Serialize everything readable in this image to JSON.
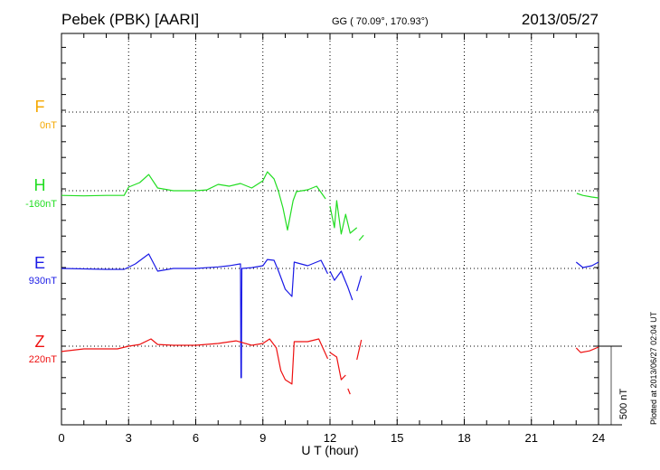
{
  "header": {
    "station": "Pebek (PBK)  [AARI]",
    "coords": "GG ( 70.09°, 170.93°)",
    "date": "2013/05/27"
  },
  "footer": {
    "plotted": "Plotted at 2013/06/27 02:04 UT",
    "scale_label": "500 nT"
  },
  "chart_data": {
    "type": "line",
    "title": "Pebek (PBK)  [AARI]",
    "xlabel": "U T (hour)",
    "xlim": [
      0,
      24
    ],
    "xticks": [
      "0",
      "3",
      "6",
      "9",
      "12",
      "15",
      "18",
      "21",
      "24"
    ],
    "nT_per_tick": 100,
    "scale_nT": 500,
    "grid": true,
    "components": [
      {
        "name": "F",
        "offset": "0nT",
        "color": "#f5a800",
        "segments": []
      },
      {
        "name": "H",
        "offset": "-160nT",
        "color": "#22dd22",
        "segments": [
          [
            [
              0,
              -30
            ],
            [
              1,
              -33
            ],
            [
              2,
              -30
            ],
            [
              2.8,
              -30
            ],
            [
              3.0,
              23
            ],
            [
              3.5,
              52
            ],
            [
              3.9,
              103
            ],
            [
              4.3,
              17
            ],
            [
              5,
              0
            ],
            [
              6,
              0
            ],
            [
              6.5,
              5
            ],
            [
              7,
              40
            ],
            [
              7.5,
              29
            ],
            [
              8,
              46
            ],
            [
              8.5,
              17
            ],
            [
              9,
              63
            ],
            [
              9.2,
              120
            ],
            [
              9.5,
              75
            ],
            [
              9.7,
              -6
            ],
            [
              9.9,
              -110
            ],
            [
              10.1,
              -250
            ],
            [
              10.35,
              -63
            ],
            [
              10.5,
              -6
            ],
            [
              11,
              6
            ],
            [
              11.4,
              29
            ],
            [
              11.8,
              -52
            ]
          ],
          [
            [
              12.0,
              -98
            ],
            [
              12.2,
              -235
            ],
            [
              12.3,
              -63
            ],
            [
              12.5,
              -275
            ],
            [
              12.7,
              -150
            ],
            [
              12.9,
              -270
            ],
            [
              13.2,
              -235
            ]
          ],
          [
            [
              13.3,
              -316
            ],
            [
              13.5,
              -283
            ]
          ],
          [
            [
              23.03,
              -17
            ],
            [
              23.3,
              -30
            ],
            [
              23.7,
              -40
            ],
            [
              24,
              -46
            ]
          ]
        ]
      },
      {
        "name": "E",
        "offset": "930nT",
        "color": "#1a1ae6",
        "segments": [
          [
            [
              0,
              0
            ],
            [
              1,
              -3
            ],
            [
              2,
              -6
            ],
            [
              2.8,
              -6
            ],
            [
              3.3,
              29
            ],
            [
              3.9,
              92
            ],
            [
              4.3,
              -17
            ],
            [
              5,
              0
            ],
            [
              6,
              0
            ],
            [
              7,
              10
            ],
            [
              7.5,
              17
            ],
            [
              7.98,
              29
            ],
            [
              8.0,
              29
            ],
            [
              8.02,
              -695
            ],
            [
              8.04,
              -695
            ],
            [
              8.06,
              0
            ],
            [
              8.5,
              5
            ],
            [
              9,
              17
            ],
            [
              9.2,
              57
            ],
            [
              9.5,
              52
            ],
            [
              9.7,
              -17
            ],
            [
              10.0,
              -132
            ],
            [
              10.3,
              -178
            ],
            [
              10.4,
              40
            ],
            [
              11,
              17
            ],
            [
              11.6,
              52
            ],
            [
              11.9,
              -34
            ]
          ],
          [
            [
              12.0,
              -17
            ],
            [
              12.2,
              -75
            ],
            [
              12.5,
              -17
            ],
            [
              12.8,
              -120
            ],
            [
              13.0,
              -201
            ]
          ],
          [
            [
              13.2,
              -144
            ],
            [
              13.4,
              -46
            ]
          ],
          [
            [
              23.0,
              40
            ],
            [
              23.3,
              6
            ],
            [
              23.7,
              17
            ],
            [
              24,
              40
            ]
          ]
        ]
      },
      {
        "name": "Z",
        "offset": "220nT",
        "color": "#ee1111",
        "segments": [
          [
            [
              0,
              -34
            ],
            [
              1,
              -17
            ],
            [
              2.5,
              -17
            ],
            [
              3.0,
              0
            ],
            [
              3.5,
              11
            ],
            [
              4,
              46
            ],
            [
              4.3,
              11
            ],
            [
              5,
              6
            ],
            [
              6,
              6
            ],
            [
              7,
              17
            ],
            [
              7.8,
              34
            ],
            [
              8.5,
              6
            ],
            [
              9,
              17
            ],
            [
              9.3,
              46
            ],
            [
              9.6,
              -11
            ],
            [
              9.8,
              -155
            ],
            [
              10.0,
              -213
            ],
            [
              10.3,
              -241
            ],
            [
              10.4,
              29
            ],
            [
              11,
              29
            ],
            [
              11.5,
              46
            ],
            [
              11.9,
              -80
            ]
          ],
          [
            [
              12.0,
              -40
            ],
            [
              12.3,
              -69
            ],
            [
              12.5,
              -213
            ],
            [
              12.7,
              -184
            ]
          ],
          [
            [
              12.8,
              -270
            ],
            [
              12.9,
              -305
            ]
          ],
          [
            [
              13.2,
              -86
            ],
            [
              13.4,
              40
            ]
          ],
          [
            [
              23.0,
              -11
            ],
            [
              23.2,
              -40
            ],
            [
              23.6,
              -30
            ],
            [
              24,
              -6
            ]
          ]
        ]
      }
    ]
  }
}
